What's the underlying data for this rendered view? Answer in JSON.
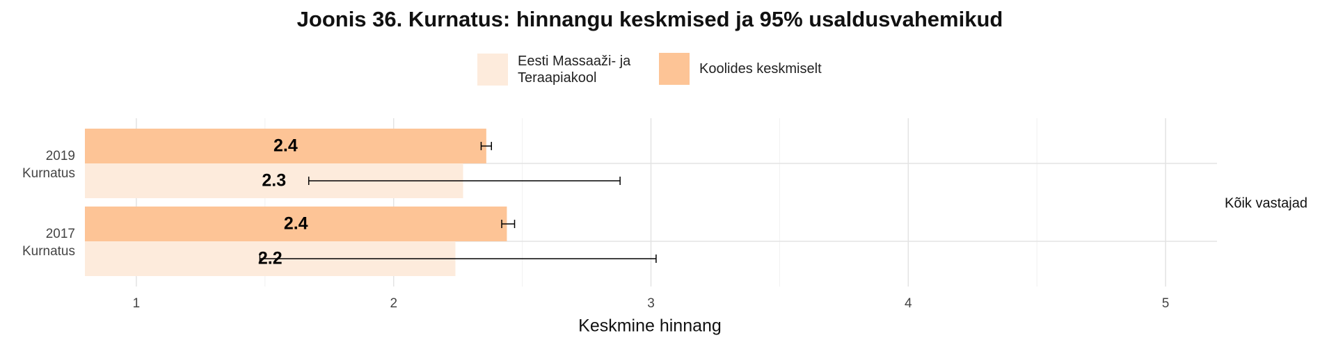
{
  "chart_data": {
    "type": "bar",
    "orientation": "horizontal",
    "title": "Joonis 36. Kurnatus: hinnangu keskmised ja 95% usaldusvahemikud",
    "categories": [
      [
        "2019",
        "Kurnatus"
      ],
      [
        "2017",
        "Kurnatus"
      ]
    ],
    "series": [
      {
        "name": "Eesti Massaaži- ja Teraapiakool",
        "color": "#fdebdc",
        "values": [
          2.27,
          2.24
        ],
        "value_labels": [
          "2.3",
          "2.2"
        ],
        "ci_low": [
          1.67,
          1.48
        ],
        "ci_high": [
          2.88,
          3.02
        ]
      },
      {
        "name": "Koolides keskmiselt",
        "color": "#fdc496",
        "values": [
          2.36,
          2.44
        ],
        "value_labels": [
          "2.4",
          "2.4"
        ],
        "ci_low": [
          2.34,
          2.42
        ],
        "ci_high": [
          2.38,
          2.47
        ]
      }
    ],
    "facet_label": "Kõik vastajad",
    "xlabel": "Keskmine hinnang",
    "xlim": [
      0.8,
      5.2
    ],
    "xticks": [
      1,
      2,
      3,
      4,
      5
    ],
    "xticks_minor": [
      1.5,
      2.5,
      3.5,
      4.5
    ],
    "grid": true
  }
}
